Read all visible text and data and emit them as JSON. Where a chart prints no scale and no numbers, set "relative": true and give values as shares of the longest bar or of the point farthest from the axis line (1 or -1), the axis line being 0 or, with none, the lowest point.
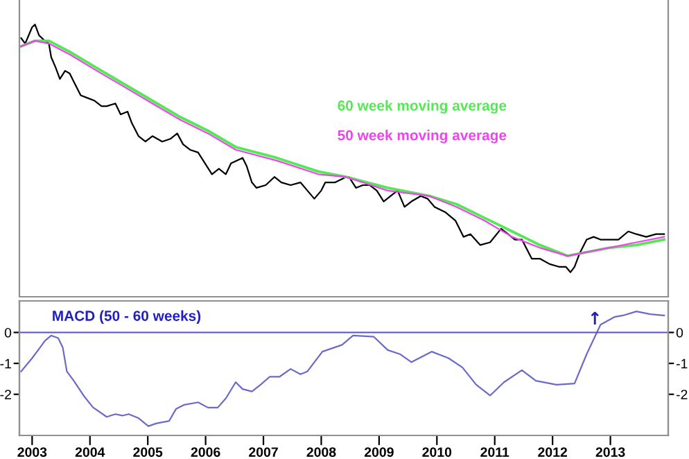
{
  "chart_data": [
    {
      "type": "line",
      "relative": true,
      "tick_labels": false,
      "xlim": [
        2002.78,
        2014.0
      ],
      "series": [
        {
          "name": null,
          "color": "#000000",
          "x": [
            2002.81,
            2002.88,
            2003.0,
            2003.05,
            2003.12,
            2003.22,
            2003.29,
            2003.33,
            2003.41,
            2003.48,
            2003.57,
            2003.65,
            2003.72,
            2003.84,
            2003.96,
            2004.08,
            2004.2,
            2004.29,
            2004.44,
            2004.53,
            2004.65,
            2004.72,
            2004.84,
            2004.96,
            2005.08,
            2005.25,
            2005.39,
            2005.51,
            2005.61,
            2005.73,
            2005.87,
            2005.99,
            2006.11,
            2006.23,
            2006.35,
            2006.44,
            2006.64,
            2006.71,
            2006.8,
            2006.88,
            2007.04,
            2007.19,
            2007.31,
            2007.47,
            2007.64,
            2007.76,
            2007.88,
            2008.0,
            2008.07,
            2008.24,
            2008.43,
            2008.48,
            2008.6,
            2008.72,
            2008.84,
            2008.96,
            2009.08,
            2009.2,
            2009.32,
            2009.44,
            2009.56,
            2009.72,
            2009.84,
            2009.96,
            2010.15,
            2010.32,
            2010.46,
            2010.58,
            2010.75,
            2010.92,
            2011.11,
            2011.23,
            2011.35,
            2011.47,
            2011.64,
            2011.78,
            2011.95,
            2012.11,
            2012.23,
            2012.31,
            2012.38,
            2012.47,
            2012.59,
            2012.71,
            2012.83,
            2012.98,
            2013.14,
            2013.31,
            2013.45,
            2013.62,
            2013.79,
            2013.93
          ],
          "values": [
            0.95,
            0.93,
            0.99,
            1.0,
            0.96,
            0.94,
            0.93,
            0.88,
            0.84,
            0.8,
            0.83,
            0.82,
            0.79,
            0.74,
            0.73,
            0.72,
            0.7,
            0.7,
            0.71,
            0.67,
            0.68,
            0.64,
            0.59,
            0.57,
            0.59,
            0.57,
            0.58,
            0.6,
            0.56,
            0.54,
            0.53,
            0.49,
            0.45,
            0.47,
            0.45,
            0.49,
            0.51,
            0.48,
            0.42,
            0.4,
            0.41,
            0.44,
            0.42,
            0.41,
            0.42,
            0.39,
            0.36,
            0.39,
            0.42,
            0.42,
            0.44,
            0.44,
            0.4,
            0.41,
            0.41,
            0.39,
            0.35,
            0.37,
            0.39,
            0.33,
            0.35,
            0.37,
            0.36,
            0.33,
            0.31,
            0.28,
            0.22,
            0.23,
            0.19,
            0.2,
            0.25,
            0.23,
            0.21,
            0.21,
            0.14,
            0.14,
            0.12,
            0.11,
            0.11,
            0.09,
            0.11,
            0.16,
            0.21,
            0.22,
            0.21,
            0.21,
            0.21,
            0.24,
            0.23,
            0.22,
            0.23,
            0.23
          ]
        },
        {
          "name": "60 week moving average",
          "color": "#55e855",
          "x": [
            2002.81,
            2003.05,
            2003.29,
            2003.65,
            2004.12,
            2004.6,
            2005.08,
            2005.56,
            2006.04,
            2006.52,
            2007.23,
            2007.95,
            2008.43,
            2009.15,
            2009.87,
            2010.34,
            2010.82,
            2011.3,
            2011.78,
            2012.26,
            2012.5,
            2012.98,
            2013.45,
            2013.93
          ],
          "values": [
            0.92,
            0.94,
            0.94,
            0.9,
            0.84,
            0.78,
            0.72,
            0.66,
            0.61,
            0.55,
            0.51,
            0.46,
            0.44,
            0.4,
            0.37,
            0.34,
            0.29,
            0.24,
            0.19,
            0.15,
            0.16,
            0.18,
            0.19,
            0.21
          ]
        },
        {
          "name": "50 week moving average",
          "color": "#ee44ee",
          "x": [
            2002.81,
            2003.05,
            2003.29,
            2003.65,
            2004.12,
            2004.6,
            2005.08,
            2005.56,
            2006.04,
            2006.52,
            2007.23,
            2007.95,
            2008.43,
            2009.15,
            2009.87,
            2010.34,
            2010.82,
            2011.3,
            2011.78,
            2012.26,
            2012.5,
            2012.98,
            2013.45,
            2013.93
          ],
          "values": [
            0.92,
            0.94,
            0.93,
            0.89,
            0.83,
            0.77,
            0.71,
            0.65,
            0.6,
            0.54,
            0.5,
            0.45,
            0.44,
            0.39,
            0.37,
            0.33,
            0.28,
            0.22,
            0.18,
            0.15,
            0.16,
            0.18,
            0.2,
            0.22
          ]
        }
      ]
    },
    {
      "type": "line",
      "title": "MACD (50 - 60 weeks)",
      "xlim": [
        2002.78,
        2014.0
      ],
      "xticks": [
        2003,
        2004,
        2005,
        2006,
        2007,
        2008,
        2009,
        2010,
        2011,
        2012,
        2013
      ],
      "ylim": [
        -3.33,
        1.02
      ],
      "yticks": [
        0,
        -1,
        -2
      ],
      "y2lim": [
        -3.33,
        1.02
      ],
      "y2ticks": [
        0,
        -1,
        -2
      ],
      "ref_lines": [
        {
          "axis": "y",
          "value": 0,
          "label": null,
          "color": "#5050e0"
        }
      ],
      "annotations": [
        "↑"
      ],
      "series": [
        {
          "name": null,
          "color": "#6a6ac8",
          "x": [
            2002.81,
            2003.0,
            2003.12,
            2003.22,
            2003.33,
            2003.45,
            2003.53,
            2003.6,
            2003.72,
            2003.89,
            2004.05,
            2004.29,
            2004.44,
            2004.56,
            2004.67,
            2004.84,
            2005.01,
            2005.15,
            2005.37,
            2005.49,
            2005.63,
            2005.87,
            2006.04,
            2006.21,
            2006.35,
            2006.52,
            2006.64,
            2006.8,
            2006.95,
            2007.11,
            2007.28,
            2007.47,
            2007.64,
            2007.76,
            2008.02,
            2008.36,
            2008.55,
            2008.91,
            2009.15,
            2009.36,
            2009.56,
            2009.91,
            2010.2,
            2010.44,
            2010.68,
            2010.92,
            2011.16,
            2011.47,
            2011.71,
            2012.07,
            2012.38,
            2012.59,
            2012.83,
            2013.07,
            2013.22,
            2013.45,
            2013.69,
            2013.93
          ],
          "values": [
            -1.26,
            -0.83,
            -0.53,
            -0.27,
            -0.1,
            -0.18,
            -0.49,
            -1.26,
            -1.56,
            -2.04,
            -2.42,
            -2.73,
            -2.64,
            -2.69,
            -2.64,
            -2.77,
            -3.03,
            -2.94,
            -2.86,
            -2.47,
            -2.34,
            -2.26,
            -2.43,
            -2.43,
            -2.13,
            -1.61,
            -1.83,
            -1.91,
            -1.69,
            -1.43,
            -1.43,
            -1.18,
            -1.35,
            -1.26,
            -0.62,
            -0.4,
            -0.1,
            -0.14,
            -0.57,
            -0.7,
            -0.96,
            -0.62,
            -0.83,
            -1.13,
            -1.69,
            -2.04,
            -1.61,
            -1.22,
            -1.56,
            -1.69,
            -1.65,
            -0.7,
            0.25,
            0.5,
            0.55,
            0.68,
            0.59,
            0.55
          ]
        }
      ]
    }
  ]
}
